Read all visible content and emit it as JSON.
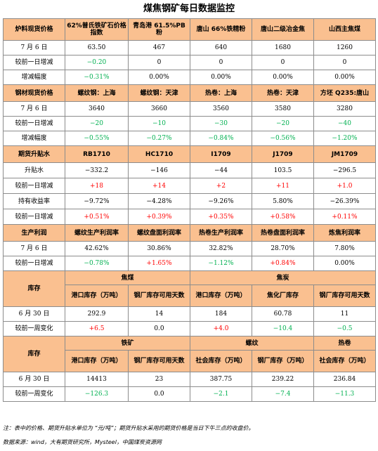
{
  "title": "煤焦钢矿每日数据监控",
  "s1": {
    "header": [
      "炉料现货价格",
      "62%普氏铁矿石价格指数",
      "青岛港 61.5%PB粉",
      "唐山 66%铁精粉",
      "唐山二级冶金焦",
      "山西主焦煤"
    ],
    "date_label": "7 月 6 日",
    "prices": [
      "63.50",
      "467",
      "640",
      "1680",
      "1260"
    ],
    "chg_label": "较前一日增减",
    "chg": [
      "−0.20",
      "0",
      "0",
      "0",
      "0"
    ],
    "pct_label": "增减幅度",
    "pct": [
      "−0.31%",
      "0.00%",
      "0.00%",
      "0.00%",
      "0.00%"
    ]
  },
  "s2": {
    "header": [
      "钢材现货价格",
      "螺纹钢：上海",
      "螺纹钢：天津",
      "热卷：上海",
      "热卷：天津",
      "方坯 Q235:唐山"
    ],
    "date_label": "7 月 6 日",
    "prices": [
      "3640",
      "3660",
      "3560",
      "3580",
      "3280"
    ],
    "chg_label": "较前一日增减",
    "chg": [
      "−20",
      "−10",
      "−30",
      "−20",
      "−40"
    ],
    "pct_label": "增减幅度",
    "pct": [
      "−0.55%",
      "−0.27%",
      "−0.84%",
      "−0.56%",
      "−1.20%"
    ]
  },
  "s3": {
    "header": [
      "期货升贴水",
      "RB1710",
      "HC1710",
      "I1709",
      "J1709",
      "JM1709"
    ],
    "basis_label": "升贴水",
    "basis": [
      "−332.2",
      "−146",
      "−44",
      "103.5",
      "−296.5"
    ],
    "basis_chg_label": "较前一日增减",
    "basis_chg": [
      "+18",
      "+14",
      "+2",
      "+11",
      "+1.0"
    ],
    "yield_label": "持有收益率",
    "yield": [
      "−9.72%",
      "−4.28%",
      "−9.26%",
      "5.80%",
      "−26.39%"
    ],
    "yield_chg_label": "较前一日增减",
    "yield_chg": [
      "+0.51%",
      "+0.39%",
      "+0.35%",
      "+0.58%",
      "+0.11%"
    ]
  },
  "s4": {
    "header": [
      "生产利润",
      "螺纹生产利润率",
      "螺纹盘面利润率",
      "热卷生产利润率",
      "热卷盘面利润率",
      "炼焦利润率"
    ],
    "date_label": "7 月 6 日",
    "vals": [
      "42.62%",
      "30.86%",
      "32.82%",
      "28.70%",
      "7.80%"
    ],
    "chg_label": "较前一日增减",
    "chg": [
      "−0.78%",
      "+1.65%",
      "−1.12%",
      "+0.84%",
      "0.00%"
    ]
  },
  "s5": {
    "label": "库存",
    "group1": "焦煤",
    "group2": "焦炭",
    "sub": [
      "港口库存（万吨）",
      "钢厂库存可用天数",
      "港口库存（万吨）",
      "焦化厂库存",
      "钢厂库存可用天数"
    ],
    "date_label": "6 月 30 日",
    "vals": [
      "292.9",
      "14",
      "184",
      "60.78",
      "11"
    ],
    "chg_label": "较前一周变化",
    "chg": [
      "+6.5",
      "0.0",
      "+4.0",
      "−10.4",
      "−0.5"
    ]
  },
  "s6": {
    "label": "库存",
    "group1": "铁矿",
    "group2": "螺纹",
    "group3": "热卷",
    "sub": [
      "港口库存（万吨）",
      "钢厂库存可用天数",
      "社会库存（万吨）",
      "钢厂库存（万吨）",
      "社会库存（万吨）"
    ],
    "date_label": "6 月 30 日",
    "vals": [
      "14413",
      "23",
      "387.75",
      "239.22",
      "236.84"
    ],
    "chg_label": "较前一周变化",
    "chg": [
      "−126.3",
      "0.0",
      "−2.1",
      "−7.4",
      "−11.3"
    ]
  },
  "note": "注：表中的价格、期货升贴水单位为 “元/吨”；期货升贴水采用的期货价格是当日下午三点的收盘价。",
  "source": "数据来源：wind，大有期货研究所，Mysteel，中国煤炭资源网",
  "colors": {
    "header_bg": "#fac090",
    "up": "#ff0000",
    "down": "#00b050",
    "border": "#8c8c8c"
  }
}
